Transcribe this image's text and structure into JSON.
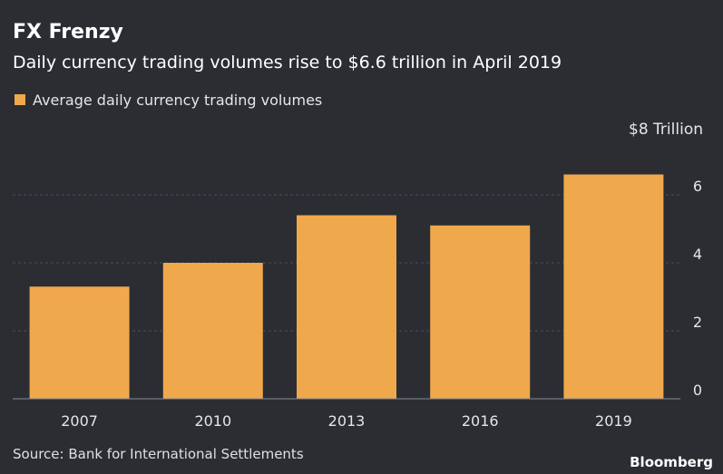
{
  "chart_data": {
    "type": "bar",
    "title": "FX Frenzy",
    "subtitle": "Daily currency trading volumes rise to $6.6 trillion in April 2019",
    "legend": "Average daily currency trading volumes",
    "legend_position": "top-left",
    "unit_label": "$8 Trillion",
    "categories": [
      "2007",
      "2010",
      "2013",
      "2016",
      "2019"
    ],
    "values": [
      3.3,
      4.0,
      5.4,
      5.1,
      6.6
    ],
    "yticks": [
      "0",
      "2",
      "4",
      "6"
    ],
    "ylim": [
      0,
      8
    ],
    "grid": true,
    "bar_color": "#f0a84d",
    "source": "Source: Bank for International Settlements",
    "brand": "Bloomberg"
  }
}
